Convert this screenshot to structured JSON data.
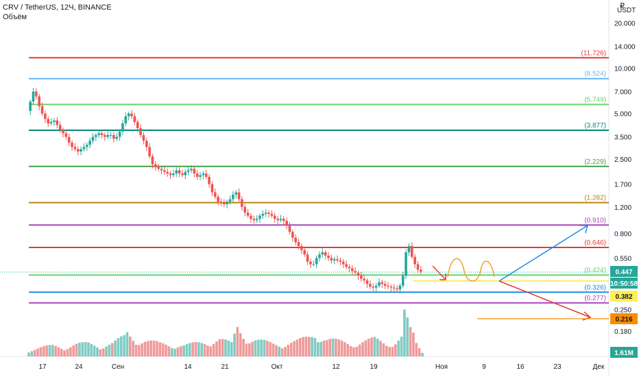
{
  "header": {
    "symbol": "CRV / TetherUS, 12Ч, BINANCE",
    "volume_label": "Объём"
  },
  "price_axis": {
    "unit_sign": "₽",
    "unit": "USDT",
    "tick_labels": [
      "20.000",
      "14.000",
      "10.000",
      "7.000",
      "5.000",
      "3.500",
      "2.500",
      "1.700",
      "1.200",
      "0.800",
      "0.550",
      "0.250",
      "0.180"
    ]
  },
  "badges": {
    "last_price": "0.447",
    "countdown": "10:50:58",
    "level_yellow": "0.382",
    "level_orange": "0.216",
    "volume": "1.61M"
  },
  "colors": {
    "up": "#26a69a",
    "down": "#ef5350",
    "vol_up": "#80cbc4",
    "vol_down": "#ef9a9a",
    "red": "#e53935",
    "lightblue": "#64b5f6",
    "green": "#66d36e",
    "teal": "#00897b",
    "darkgreen": "#43a047",
    "olive": "#b8860b",
    "purple": "#ab47bc",
    "blue": "#1e88e5",
    "yellow": "#ffee58",
    "orange": "#fb8c00"
  },
  "chart_data": {
    "type": "candlestick",
    "symbol": "CRV / TetherUS",
    "timeframe": "12Ч",
    "exchange": "BINANCE",
    "y_scale": "log",
    "y_unit": "USDT",
    "x_tick_labels": [
      "17",
      "24",
      "Сен",
      "14",
      "21",
      "Окт",
      "12",
      "19",
      "Ноя",
      "9",
      "16",
      "23",
      "Дек"
    ],
    "levels": [
      {
        "label": "(11.726)",
        "value": 11.726,
        "color": "#e53935"
      },
      {
        "label": "(8.524)",
        "value": 8.524,
        "color": "#64b5f6"
      },
      {
        "label": "(5.749)",
        "value": 5.749,
        "color": "#66d36e"
      },
      {
        "label": "(3.877)",
        "value": 3.877,
        "color": "#00897b"
      },
      {
        "label": "(2.229)",
        "value": 2.229,
        "color": "#43a047"
      },
      {
        "label": "(1.282)",
        "value": 1.282,
        "color": "#b8860b"
      },
      {
        "label": "(0.910)",
        "value": 0.91,
        "color": "#ab47bc"
      },
      {
        "label": "(0.646)",
        "value": 0.646,
        "color": "#e53935"
      },
      {
        "label": "(0.424)",
        "value": 0.424,
        "color": "#66d36e"
      },
      {
        "label": "(0.326)",
        "value": 0.326,
        "color": "#1e88e5"
      },
      {
        "label": "(0.277)",
        "value": 0.277,
        "color": "#ab47bc"
      }
    ],
    "price_path": [
      [
        0,
        5.2
      ],
      [
        2,
        6.0
      ],
      [
        4,
        7.0
      ],
      [
        6,
        6.5
      ],
      [
        8,
        5.6
      ],
      [
        10,
        5.0
      ],
      [
        12,
        4.6
      ],
      [
        14,
        4.3
      ],
      [
        16,
        4.4
      ],
      [
        18,
        4.5
      ],
      [
        20,
        4.2
      ],
      [
        22,
        3.9
      ],
      [
        24,
        3.7
      ],
      [
        26,
        3.5
      ],
      [
        28,
        3.2
      ],
      [
        30,
        3.0
      ],
      [
        32,
        2.9
      ],
      [
        34,
        2.8
      ],
      [
        36,
        2.9
      ],
      [
        38,
        3.0
      ],
      [
        40,
        3.1
      ],
      [
        42,
        3.3
      ],
      [
        44,
        3.5
      ],
      [
        46,
        3.6
      ],
      [
        48,
        3.7
      ],
      [
        50,
        3.6
      ],
      [
        52,
        3.5
      ],
      [
        54,
        3.6
      ],
      [
        56,
        3.6
      ],
      [
        58,
        3.4
      ],
      [
        60,
        3.5
      ],
      [
        62,
        3.8
      ],
      [
        64,
        4.3
      ],
      [
        66,
        4.8
      ],
      [
        68,
        5.0
      ],
      [
        70,
        4.8
      ],
      [
        72,
        4.4
      ],
      [
        74,
        4.0
      ],
      [
        76,
        3.6
      ],
      [
        78,
        3.3
      ],
      [
        80,
        3.0
      ],
      [
        82,
        2.6
      ],
      [
        84,
        2.3
      ],
      [
        86,
        2.2
      ],
      [
        88,
        2.15
      ],
      [
        90,
        2.1
      ],
      [
        92,
        2.05
      ],
      [
        94,
        2.0
      ],
      [
        96,
        1.95
      ],
      [
        98,
        2.0
      ],
      [
        100,
        2.1
      ],
      [
        102,
        2.0
      ],
      [
        104,
        1.95
      ],
      [
        106,
        2.05
      ],
      [
        108,
        2.1
      ],
      [
        110,
        2.15
      ],
      [
        112,
        2.0
      ],
      [
        114,
        1.9
      ],
      [
        116,
        1.95
      ],
      [
        118,
        2.0
      ],
      [
        120,
        1.9
      ],
      [
        122,
        1.7
      ],
      [
        124,
        1.5
      ],
      [
        126,
        1.4
      ],
      [
        128,
        1.3
      ],
      [
        130,
        1.28
      ],
      [
        132,
        1.25
      ],
      [
        134,
        1.3
      ],
      [
        136,
        1.35
      ],
      [
        138,
        1.45
      ],
      [
        140,
        1.5
      ],
      [
        142,
        1.35
      ],
      [
        144,
        1.2
      ],
      [
        146,
        1.1
      ],
      [
        148,
        1.05
      ],
      [
        150,
        1.0
      ],
      [
        152,
        0.98
      ],
      [
        154,
        1.0
      ],
      [
        156,
        1.05
      ],
      [
        158,
        1.08
      ],
      [
        160,
        1.1
      ],
      [
        162,
        1.08
      ],
      [
        164,
        1.05
      ],
      [
        166,
        1.0
      ],
      [
        168,
        0.98
      ],
      [
        170,
        1.0
      ],
      [
        172,
        0.97
      ],
      [
        174,
        0.9
      ],
      [
        176,
        0.82
      ],
      [
        178,
        0.75
      ],
      [
        180,
        0.7
      ],
      [
        182,
        0.66
      ],
      [
        184,
        0.62
      ],
      [
        186,
        0.58
      ],
      [
        188,
        0.52
      ],
      [
        190,
        0.5
      ],
      [
        192,
        0.5
      ],
      [
        194,
        0.55
      ],
      [
        196,
        0.58
      ],
      [
        198,
        0.6
      ],
      [
        200,
        0.57
      ],
      [
        202,
        0.55
      ],
      [
        204,
        0.53
      ],
      [
        206,
        0.54
      ],
      [
        208,
        0.53
      ],
      [
        210,
        0.52
      ],
      [
        212,
        0.5
      ],
      [
        214,
        0.48
      ],
      [
        216,
        0.47
      ],
      [
        218,
        0.45
      ],
      [
        220,
        0.44
      ],
      [
        222,
        0.42
      ],
      [
        224,
        0.4
      ],
      [
        226,
        0.39
      ],
      [
        228,
        0.37
      ],
      [
        230,
        0.355
      ],
      [
        232,
        0.35
      ],
      [
        234,
        0.36
      ],
      [
        236,
        0.38
      ],
      [
        238,
        0.37
      ],
      [
        240,
        0.36
      ],
      [
        242,
        0.355
      ],
      [
        244,
        0.35
      ],
      [
        246,
        0.345
      ],
      [
        248,
        0.34
      ],
      [
        250,
        0.36
      ],
      [
        252,
        0.42
      ],
      [
        254,
        0.6
      ],
      [
        256,
        0.66
      ],
      [
        258,
        0.56
      ],
      [
        260,
        0.5
      ],
      [
        262,
        0.46
      ],
      [
        264,
        0.447
      ]
    ],
    "volume_path": [
      [
        0,
        0.15
      ],
      [
        8,
        0.2
      ],
      [
        16,
        0.25
      ],
      [
        24,
        0.22
      ],
      [
        32,
        0.28
      ],
      [
        40,
        0.3
      ],
      [
        48,
        0.25
      ],
      [
        56,
        0.3
      ],
      [
        64,
        0.45
      ],
      [
        66,
        0.55
      ],
      [
        72,
        0.4
      ],
      [
        80,
        0.35
      ],
      [
        88,
        0.3
      ],
      [
        96,
        0.28
      ],
      [
        104,
        0.25
      ],
      [
        112,
        0.3
      ],
      [
        120,
        0.35
      ],
      [
        128,
        0.4
      ],
      [
        136,
        0.3
      ],
      [
        140,
        0.7
      ],
      [
        148,
        0.4
      ],
      [
        156,
        0.35
      ],
      [
        164,
        0.3
      ],
      [
        172,
        0.3
      ],
      [
        180,
        0.35
      ],
      [
        188,
        0.45
      ],
      [
        192,
        0.55
      ],
      [
        200,
        0.4
      ],
      [
        208,
        0.35
      ],
      [
        216,
        0.3
      ],
      [
        224,
        0.35
      ],
      [
        232,
        0.4
      ],
      [
        240,
        0.3
      ],
      [
        246,
        0.35
      ],
      [
        250,
        0.45
      ],
      [
        252,
        1.0
      ],
      [
        254,
        0.8
      ],
      [
        256,
        0.6
      ],
      [
        258,
        0.5
      ],
      [
        260,
        0.3
      ],
      [
        264,
        0.1
      ]
    ]
  }
}
